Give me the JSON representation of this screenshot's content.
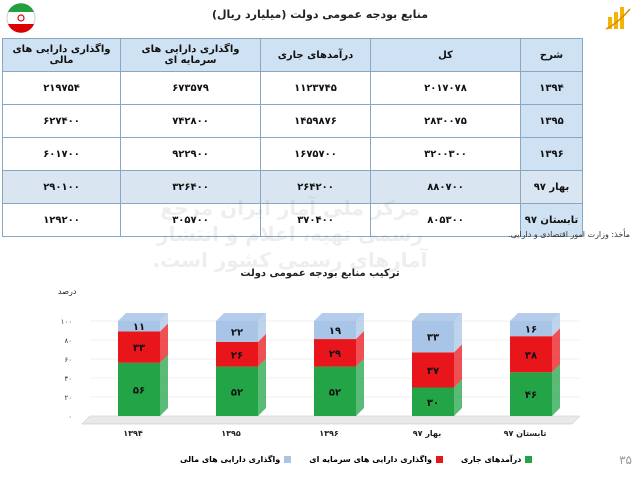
{
  "title": "منابع بودجه عمومی دولت (میلیارد ریال)",
  "table": {
    "headers": [
      "شرح",
      "کل",
      "درآمدهای جاری",
      "واگذاری دارایی های سرمایه ای",
      "واگذاری دارایی های مالی"
    ],
    "rows": [
      {
        "label": "۱۳۹۴",
        "cells": [
          "۲۰۱۷۰۷۸",
          "۱۱۲۳۷۴۵",
          "۶۷۳۵۷۹",
          "۲۱۹۷۵۴"
        ]
      },
      {
        "label": "۱۳۹۵",
        "cells": [
          "۲۸۳۰۰۷۵",
          "۱۴۵۹۸۷۶",
          "۷۴۲۸۰۰",
          "۶۲۷۴۰۰"
        ]
      },
      {
        "label": "۱۳۹۶",
        "cells": [
          "۳۲۰۰۳۰۰",
          "۱۶۷۵۷۰۰",
          "۹۲۲۹۰۰",
          "۶۰۱۷۰۰"
        ]
      },
      {
        "label": "بهار ۹۷",
        "cells": [
          "۸۸۰۷۰۰",
          "۲۶۴۲۰۰",
          "۳۲۶۴۰۰",
          "۲۹۰۱۰۰"
        ]
      },
      {
        "label": "تابستان ۹۷",
        "cells": [
          "۸۰۵۳۰۰",
          "۳۷۰۴۰۰",
          "۳۰۵۷۰۰",
          "۱۲۹۲۰۰"
        ]
      }
    ]
  },
  "source": "مأخذ: وزارت امور اقتصادی و دارایی.",
  "watermark": [
    "مرکز ملی آمار ایران مرجع",
    "رسمی تهیه، اعلام و انتشار",
    "آمارهای رسمی کشور است."
  ],
  "page_number": "۳۵",
  "colors": {
    "current": "#22a447",
    "capital": "#e8161b",
    "financial": "#a8c4e6",
    "header": "#cfe2f3"
  },
  "chart_data": {
    "type": "bar",
    "stacked": true,
    "percent": true,
    "title": "ترکیب منابع بودجه عمومی دولت",
    "ylabel": "درصد",
    "ylim": [
      0,
      100
    ],
    "yticks": [
      "۰",
      "۲۰",
      "۴۰",
      "۶۰",
      "۸۰",
      "۱۰۰"
    ],
    "categories": [
      "۱۳۹۴",
      "۱۳۹۵",
      "۱۳۹۶",
      "بهار ۹۷",
      "تابستان ۹۷"
    ],
    "series": [
      {
        "name": "درآمدهای جاری",
        "values": [
          56,
          52,
          52,
          30,
          46
        ],
        "labels": [
          "۵۶",
          "۵۲",
          "۵۲",
          "۳۰",
          "۴۶"
        ],
        "color": "#22a447"
      },
      {
        "name": "واگذاری دارایی های سرمایه ای",
        "values": [
          33,
          26,
          29,
          37,
          38
        ],
        "labels": [
          "۳۳",
          "۲۶",
          "۲۹",
          "۳۷",
          "۳۸"
        ],
        "color": "#e8161b"
      },
      {
        "name": "واگذاری دارایی های مالی",
        "values": [
          11,
          22,
          19,
          33,
          16
        ],
        "labels": [
          "۱۱",
          "۲۲",
          "۱۹",
          "۳۳",
          "۱۶"
        ],
        "color": "#a8c4e6"
      }
    ],
    "legend": "bottom"
  }
}
